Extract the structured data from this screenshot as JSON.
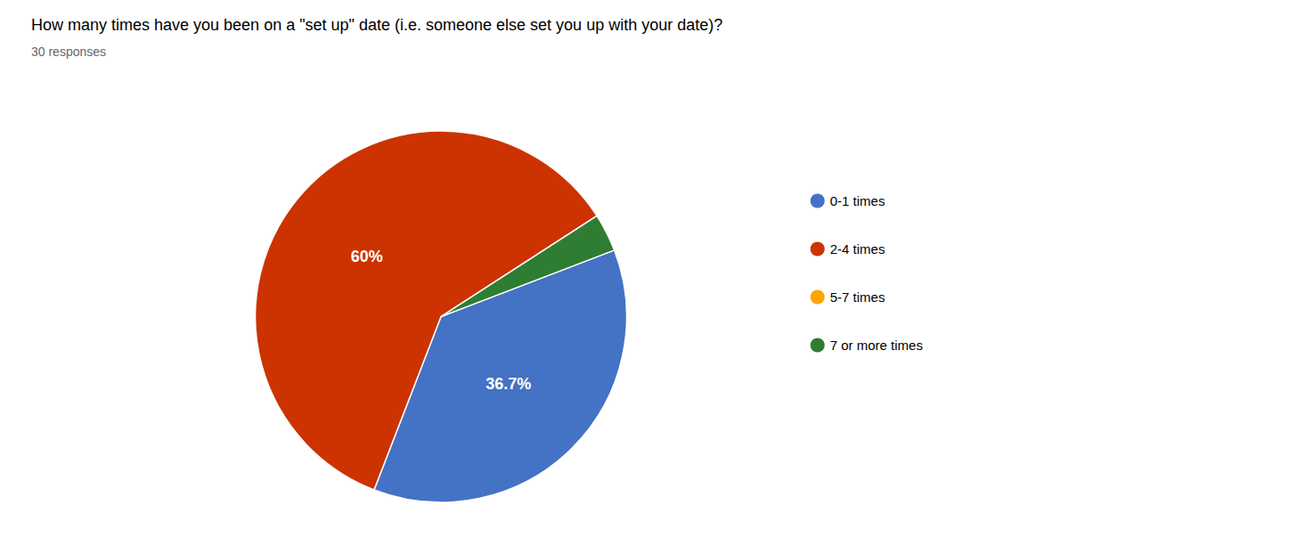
{
  "chart_data": {
    "type": "pie",
    "title": "How many times have you been on a \"set up\" date (i.e. someone else set you up with your date)?",
    "subtitle": "30 responses",
    "categories": [
      "0-1 times",
      "2-4 times",
      "5-7 times",
      "7 or more times"
    ],
    "values": [
      36.7,
      60.0,
      0.0,
      3.3
    ],
    "colors": [
      "#4472C4",
      "#CC3300",
      "#FFA500",
      "#2E7D32"
    ],
    "data_labels": true,
    "value_labels": [
      "36.7%",
      "60%",
      null,
      null
    ],
    "legend": "right"
  }
}
